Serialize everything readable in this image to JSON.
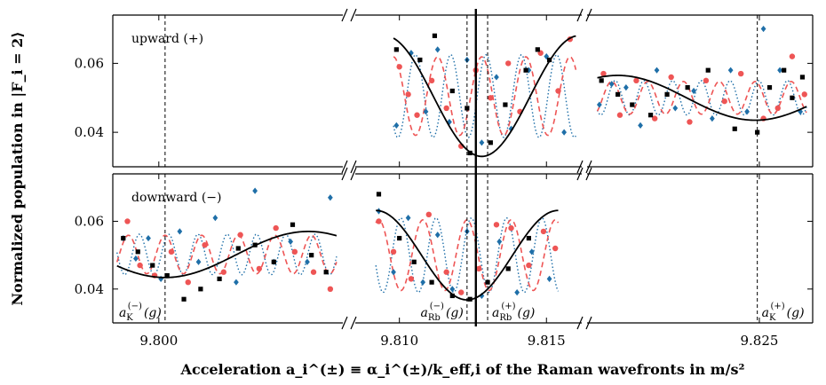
{
  "chart_data": {
    "type": "scatter",
    "xlabel": "Acceleration a_i^(±) ≡ α_i^(±)/k_eff,i of the Raman wavefronts in m/s²",
    "ylabel": "Normalized population in |F_i = 2⟩",
    "ylim": [
      0.03,
      0.074
    ],
    "y_ticks": [
      "0.06",
      "0.04"
    ],
    "y_tick_values": [
      0.06,
      0.04
    ],
    "x_ticks": [
      "9.800",
      "9.810",
      "9.815",
      "9.825"
    ],
    "x_tick_values": [
      9.8,
      9.81,
      9.815,
      9.825
    ],
    "broken_x_axis": true,
    "x_segments": [
      [
        9.7978,
        9.8088
      ],
      [
        9.8085,
        9.8162
      ],
      [
        9.8166,
        9.8276
      ]
    ],
    "colors": {
      "black": "#000000",
      "red": "#ee5555",
      "blue": "#1f6fa8"
    },
    "reference_lines": [
      {
        "x": 9.8003,
        "label": "a_K^(−)(g)",
        "sub": "K",
        "sup": "(−)",
        "style": "dashed"
      },
      {
        "x": 9.8123,
        "label": "a_Rb^(−)(g)",
        "sub": "Rb",
        "sup": "(−)",
        "style": "dashed"
      },
      {
        "x": 9.813,
        "label": "a_Rb^(+)(g)",
        "sub": "Rb",
        "sup": "(+)",
        "style": "dashed"
      },
      {
        "x": 9.8249,
        "label": "a_K^(+)(g)",
        "sub": "K",
        "sup": "(+)",
        "style": "dashed"
      },
      {
        "x": 9.8126,
        "label": "",
        "style": "solid"
      }
    ],
    "panels": [
      {
        "label": "upward (+)",
        "segments": [
          {
            "x_range": [
              9.8098,
              9.816
            ],
            "fit_center": 9.8128,
            "fit_period": 0.0066,
            "fit_offset": 0.0505,
            "fit_amp": 0.0175,
            "osc_period": 0.0012,
            "osc_amp": 0.012,
            "black_points": [
              [
                9.8099,
                0.064
              ],
              [
                9.8107,
                0.061
              ],
              [
                9.8112,
                0.068
              ],
              [
                9.8118,
                0.052
              ],
              [
                9.8123,
                0.047
              ],
              [
                9.8124,
                0.034
              ],
              [
                9.8131,
                0.037
              ],
              [
                9.8136,
                0.048
              ],
              [
                9.8143,
                0.058
              ],
              [
                9.8147,
                0.064
              ],
              [
                9.8151,
                0.061
              ]
            ],
            "red_points": [
              [
                9.81,
                0.059
              ],
              [
                9.8103,
                0.051
              ],
              [
                9.8106,
                0.045
              ],
              [
                9.8111,
                0.055
              ],
              [
                9.8116,
                0.047
              ],
              [
                9.8121,
                0.036
              ],
              [
                9.8126,
                0.058
              ],
              [
                9.8131,
                0.05
              ],
              [
                9.8137,
                0.06
              ],
              [
                9.8141,
                0.046
              ],
              [
                9.8148,
                0.063
              ],
              [
                9.8154,
                0.052
              ],
              [
                9.8158,
                0.067
              ]
            ],
            "blue_points": [
              [
                9.8099,
                0.042
              ],
              [
                9.8104,
                0.063
              ],
              [
                9.8109,
                0.046
              ],
              [
                9.8113,
                0.064
              ],
              [
                9.8117,
                0.043
              ],
              [
                9.8123,
                0.061
              ],
              [
                9.8128,
                0.037
              ],
              [
                9.8133,
                0.056
              ],
              [
                9.8138,
                0.041
              ],
              [
                9.8144,
                0.058
              ],
              [
                9.815,
                0.062
              ],
              [
                9.8156,
                0.04
              ]
            ]
          },
          {
            "x_range": [
              9.8171,
              9.8273
            ],
            "fit_center": 9.8248,
            "fit_period": 0.0134,
            "fit_offset": 0.05,
            "fit_amp": 0.0065,
            "osc_period": 0.0014,
            "osc_amp": 0.005,
            "black_points": [
              [
                9.8173,
                0.055
              ],
              [
                9.8181,
                0.051
              ],
              [
                9.8188,
                0.048
              ],
              [
                9.8197,
                0.045
              ],
              [
                9.8205,
                0.051
              ],
              [
                9.8215,
                0.053
              ],
              [
                9.8225,
                0.058
              ],
              [
                9.8238,
                0.041
              ],
              [
                9.8249,
                0.04
              ],
              [
                9.8255,
                0.053
              ],
              [
                9.8262,
                0.058
              ],
              [
                9.8266,
                0.05
              ],
              [
                9.8271,
                0.056
              ]
            ],
            "red_points": [
              [
                9.8174,
                0.057
              ],
              [
                9.8182,
                0.045
              ],
              [
                9.819,
                0.055
              ],
              [
                9.8199,
                0.044
              ],
              [
                9.8207,
                0.056
              ],
              [
                9.8216,
                0.043
              ],
              [
                9.8224,
                0.055
              ],
              [
                9.8233,
                0.049
              ],
              [
                9.8241,
                0.057
              ],
              [
                9.8252,
                0.044
              ],
              [
                9.8259,
                0.047
              ],
              [
                9.8266,
                0.062
              ],
              [
                9.8272,
                0.051
              ]
            ],
            "blue_points": [
              [
                9.8172,
                0.048
              ],
              [
                9.8178,
                0.054
              ],
              [
                9.8185,
                0.053
              ],
              [
                9.8192,
                0.042
              ],
              [
                9.82,
                0.058
              ],
              [
                9.8209,
                0.047
              ],
              [
                9.8218,
                0.052
              ],
              [
                9.8227,
                0.044
              ],
              [
                9.8236,
                0.058
              ],
              [
                9.8244,
                0.046
              ],
              [
                9.8252,
                0.07
              ],
              [
                9.826,
                0.058
              ],
              [
                9.827,
                0.046
              ]
            ]
          }
        ]
      },
      {
        "label": "downward (−)",
        "segments": [
          {
            "x_range": [
              9.798,
              9.8085
            ],
            "fit_center": 9.8003,
            "fit_period": 0.0137,
            "fit_offset": 0.0502,
            "fit_amp": 0.0068,
            "osc_period": 0.0014,
            "osc_amp": 0.006,
            "black_points": [
              [
                9.7983,
                0.055
              ],
              [
                9.799,
                0.051
              ],
              [
                9.7997,
                0.047
              ],
              [
                9.8004,
                0.044
              ],
              [
                9.8012,
                0.037
              ],
              [
                9.802,
                0.04
              ],
              [
                9.8029,
                0.043
              ],
              [
                9.8038,
                0.052
              ],
              [
                9.8046,
                0.053
              ],
              [
                9.8055,
                0.048
              ],
              [
                9.8064,
                0.059
              ],
              [
                9.8073,
                0.05
              ],
              [
                9.808,
                0.045
              ]
            ],
            "red_points": [
              [
                9.7985,
                0.06
              ],
              [
                9.7991,
                0.047
              ],
              [
                9.7998,
                0.044
              ],
              [
                9.8006,
                0.051
              ],
              [
                9.8014,
                0.042
              ],
              [
                9.8022,
                0.053
              ],
              [
                9.8031,
                0.045
              ],
              [
                9.8039,
                0.056
              ],
              [
                9.8048,
                0.046
              ],
              [
                9.8056,
                0.058
              ],
              [
                9.8065,
                0.051
              ],
              [
                9.8074,
                0.045
              ],
              [
                9.8082,
                0.04
              ]
            ],
            "blue_points": [
              [
                9.7983,
                0.055
              ],
              [
                9.7989,
                0.049
              ],
              [
                9.7995,
                0.055
              ],
              [
                9.8001,
                0.043
              ],
              [
                9.801,
                0.057
              ],
              [
                9.8019,
                0.048
              ],
              [
                9.8027,
                0.061
              ],
              [
                9.8037,
                0.042
              ],
              [
                9.8046,
                0.069
              ],
              [
                9.8055,
                0.048
              ],
              [
                9.8063,
                0.054
              ],
              [
                9.8071,
                0.048
              ],
              [
                9.8082,
                0.067
              ]
            ]
          },
          {
            "x_range": [
              9.8092,
              9.8154
            ],
            "fit_center": 9.8123,
            "fit_period": 0.0062,
            "fit_offset": 0.05,
            "fit_amp": 0.0132,
            "osc_period": 0.0012,
            "osc_amp": 0.011,
            "black_points": [
              [
                9.8093,
                0.068
              ],
              [
                9.81,
                0.055
              ],
              [
                9.8105,
                0.048
              ],
              [
                9.8111,
                0.042
              ],
              [
                9.8118,
                0.038
              ],
              [
                9.8124,
                0.037
              ],
              [
                9.813,
                0.042
              ],
              [
                9.8137,
                0.046
              ],
              [
                9.8144,
                0.055
              ]
            ],
            "red_points": [
              [
                9.8093,
                0.06
              ],
              [
                9.8098,
                0.051
              ],
              [
                9.8104,
                0.043
              ],
              [
                9.811,
                0.062
              ],
              [
                9.8116,
                0.045
              ],
              [
                9.8121,
                0.039
              ],
              [
                9.8127,
                0.046
              ],
              [
                9.8133,
                0.059
              ],
              [
                9.8138,
                0.058
              ],
              [
                9.8144,
                0.047
              ],
              [
                9.8149,
                0.057
              ],
              [
                9.8153,
                0.052
              ]
            ],
            "blue_points": [
              [
                9.8093,
                0.063
              ],
              [
                9.8098,
                0.045
              ],
              [
                9.8103,
                0.061
              ],
              [
                9.8108,
                0.042
              ],
              [
                9.8113,
                0.056
              ],
              [
                9.8118,
                0.04
              ],
              [
                9.8123,
                0.057
              ],
              [
                9.8128,
                0.038
              ],
              [
                9.8134,
                0.054
              ],
              [
                9.814,
                0.039
              ],
              [
                9.8145,
                0.051
              ],
              [
                9.8151,
                0.043
              ]
            ]
          }
        ]
      }
    ]
  }
}
